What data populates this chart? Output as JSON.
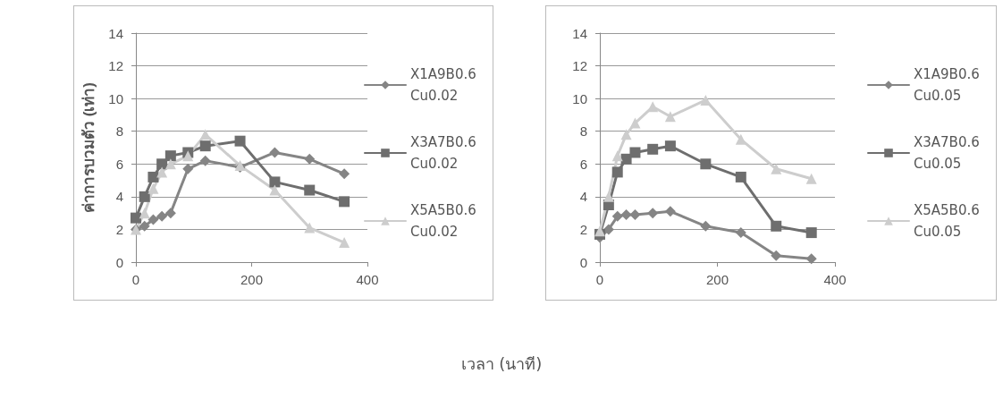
{
  "chart_data": [
    {
      "type": "line",
      "ylabel": "ค่าการบวมตัว (เท่า)",
      "xlabel": "เวลา (นาที)",
      "xlim": [
        0,
        400
      ],
      "xticks": [
        0,
        200,
        400
      ],
      "ylim": [
        0,
        14
      ],
      "yticks": [
        0,
        2,
        4,
        6,
        8,
        10,
        12,
        14
      ],
      "grid": "y",
      "legend": "right",
      "line_style": "solid",
      "x": [
        0,
        15,
        30,
        45,
        60,
        90,
        120,
        180,
        240,
        300,
        360
      ],
      "series": [
        {
          "name": "X1A9B0.6 Cu0.02",
          "color": "#858585",
          "marker": "diamond",
          "values": [
            2.0,
            2.2,
            2.6,
            2.8,
            3.0,
            5.7,
            6.2,
            5.8,
            6.7,
            6.3,
            5.4
          ]
        },
        {
          "name": "X3A7B0.6 Cu0.02",
          "color": "#6e6e6e",
          "marker": "square",
          "values": [
            2.7,
            4.0,
            5.2,
            6.0,
            6.5,
            6.7,
            7.1,
            7.4,
            4.9,
            4.4,
            3.7
          ]
        },
        {
          "name": "X5A5B0.6 Cu0.02",
          "color": "#cdcdcd",
          "marker": "triangle",
          "values": [
            2.0,
            3.0,
            4.5,
            5.5,
            6.0,
            6.5,
            7.8,
            5.9,
            4.4,
            2.1,
            1.2
          ]
        }
      ]
    },
    {
      "type": "line",
      "xlim": [
        0,
        400
      ],
      "xticks": [
        0,
        200,
        400
      ],
      "ylim": [
        0,
        14
      ],
      "yticks": [
        0,
        2,
        4,
        6,
        8,
        10,
        12,
        14
      ],
      "grid": "y",
      "legend": "right",
      "line_style": "solid",
      "x": [
        0,
        15,
        30,
        45,
        60,
        90,
        120,
        180,
        240,
        300,
        360
      ],
      "series": [
        {
          "name": "X1A9B0.6 Cu0.05",
          "color": "#858585",
          "marker": "diamond",
          "values": [
            1.5,
            2.0,
            2.8,
            2.9,
            2.9,
            3.0,
            3.1,
            2.2,
            1.8,
            0.4,
            0.2
          ]
        },
        {
          "name": "X3A7B0.6 Cu0.05",
          "color": "#6e6e6e",
          "marker": "square",
          "values": [
            1.7,
            3.5,
            5.5,
            6.3,
            6.7,
            6.9,
            7.1,
            6.0,
            5.2,
            2.2,
            1.8
          ]
        },
        {
          "name": "X5A5B0.6 Cu0.05",
          "color": "#cdcdcd",
          "marker": "triangle",
          "values": [
            1.9,
            4.0,
            6.5,
            7.8,
            8.5,
            9.5,
            8.9,
            9.9,
            7.5,
            5.7,
            5.1
          ]
        }
      ]
    }
  ]
}
